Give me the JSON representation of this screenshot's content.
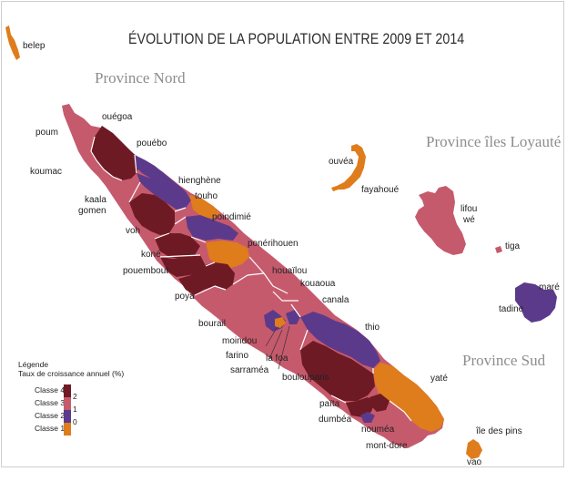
{
  "title": "ÉVOLUTION DE LA POPULATION ENTRE 2009 ET 2014",
  "provinces": {
    "nord": "Province Nord",
    "iles": "Province îles Loyauté",
    "sud": "Province Sud"
  },
  "colors": {
    "classe4": "#6e1a24",
    "classe3": "#c65a6d",
    "classe2": "#5b3a8c",
    "classe1": "#df7c1b"
  },
  "legend": {
    "title_line1": "Légende",
    "title_line2": "Taux de croissance annuel (%)",
    "classes": [
      {
        "label": "Classe 4",
        "color": "#6e1a24"
      },
      {
        "label": "Classe 3",
        "color": "#c65a6d"
      },
      {
        "label": "Classe 2",
        "color": "#5b3a8c"
      },
      {
        "label": "Classe 1",
        "color": "#df7c1b"
      }
    ],
    "ticks": [
      "2",
      "1",
      "0"
    ]
  },
  "communes": {
    "belep": {
      "name": "belep",
      "classe": 1
    },
    "poum": {
      "name": "poum",
      "classe": 3
    },
    "ouegoa": {
      "name": "ouégoa",
      "classe": 4
    },
    "pouebo": {
      "name": "pouébo",
      "classe": 2
    },
    "koumac": {
      "name": "koumac",
      "classe": 4
    },
    "hienghene": {
      "name": "hienghène",
      "classe": 2
    },
    "touho": {
      "name": "touho",
      "classe": 1
    },
    "kaala_gomen_1": "kaala",
    "kaala_gomen_2": "gomen",
    "kaala_gomen": {
      "classe": 3
    },
    "poindimie": {
      "name": "poindimié",
      "classe": 2
    },
    "voh": {
      "name": "voh",
      "classe": 4
    },
    "ponerihouen": {
      "name": "ponérihouen",
      "classe": 1
    },
    "kone": {
      "name": "koné",
      "classe": 4
    },
    "pouembout": {
      "name": "pouembout",
      "classe": 4
    },
    "houailou": {
      "name": "houaïlou",
      "classe": 3
    },
    "kouaoua": {
      "name": "kouaoua",
      "classe": 3
    },
    "poya": {
      "name": "poya",
      "classe": 4
    },
    "canala": {
      "name": "canala",
      "classe": 3
    },
    "bourail": {
      "name": "bourail",
      "classe": 3
    },
    "thio": {
      "name": "thio",
      "classe": 2
    },
    "moindou": {
      "name": "moindou",
      "classe": 2
    },
    "farino": {
      "name": "farino",
      "classe": 1
    },
    "la_foa": {
      "name": "la foa",
      "classe": 3
    },
    "sarramea": {
      "name": "sarraméa",
      "classe": 2
    },
    "boulouparis": {
      "name": "boulouparis",
      "classe": 4
    },
    "yate": {
      "name": "yaté",
      "classe": 1
    },
    "paita": {
      "name": "païta",
      "classe": 4
    },
    "dumbea": {
      "name": "dumbéa",
      "classe": 4
    },
    "noumea": {
      "name": "nouméa",
      "classe": 2
    },
    "mont_dore": {
      "name": "mont-dore",
      "classe": 3
    },
    "ouvea": {
      "name": "ouvéa",
      "classe": 1
    },
    "fayahoue": {
      "name": "fayahoué"
    },
    "lifou": {
      "name": "lifou",
      "classe": 3
    },
    "we": {
      "name": "wé"
    },
    "tiga": {
      "name": "tiga",
      "classe": 3
    },
    "mare": {
      "name": "maré",
      "classe": 2
    },
    "tadine": {
      "name": "tadine"
    },
    "ile_des_pins": {
      "name": "île des pins",
      "classe": 1
    },
    "vao": {
      "name": "vao"
    }
  }
}
